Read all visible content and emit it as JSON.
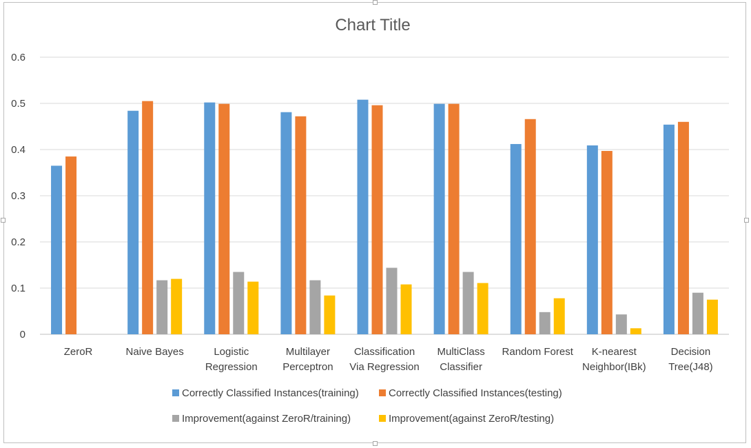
{
  "chart_data": {
    "type": "bar",
    "title": "Chart Title",
    "xlabel": "",
    "ylabel": "",
    "ylim": [
      0,
      0.6
    ],
    "yticks": [
      "0",
      "0.1",
      "0.2",
      "0.3",
      "0.4",
      "0.5",
      "0.6"
    ],
    "grid": true,
    "legend_position": "bottom",
    "categories": [
      [
        "ZeroR"
      ],
      [
        "Naive Bayes"
      ],
      [
        "Logistic",
        "Regression"
      ],
      [
        "Multilayer",
        "Perceptron"
      ],
      [
        "Classification",
        "Via Regression"
      ],
      [
        "MultiClass",
        "Classifier"
      ],
      [
        "Random Forest"
      ],
      [
        "K-nearest",
        "Neighbor(IBk)"
      ],
      [
        "Decision",
        "Tree(J48)"
      ]
    ],
    "series": [
      {
        "name": "Correctly Classified Instances(training)",
        "color": "#5b9bd5",
        "values": [
          0.365,
          0.484,
          0.502,
          0.481,
          0.508,
          0.499,
          0.412,
          0.409,
          0.454
        ]
      },
      {
        "name": "Correctly Classified Instances(testing)",
        "color": "#ed7d31",
        "values": [
          0.385,
          0.505,
          0.499,
          0.472,
          0.496,
          0.499,
          0.466,
          0.397,
          0.46
        ]
      },
      {
        "name": "Improvement(against ZeroR/training)",
        "color": "#a5a5a5",
        "values": [
          null,
          0.117,
          0.135,
          0.117,
          0.144,
          0.135,
          0.048,
          0.043,
          0.09
        ]
      },
      {
        "name": "Improvement(against ZeroR/testing)",
        "color": "#ffc000",
        "values": [
          null,
          0.12,
          0.114,
          0.084,
          0.108,
          0.111,
          0.078,
          0.013,
          0.075
        ]
      }
    ]
  }
}
